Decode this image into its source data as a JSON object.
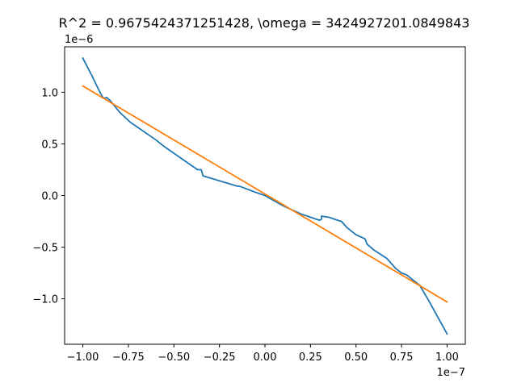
{
  "chart_data": {
    "type": "line",
    "title": "R^2 = 0.9675424371251428, \\omega = 3424927201.0849843",
    "xlabel": "",
    "ylabel": "",
    "x_offset_text": "1e−7",
    "y_offset_text": "1e−6",
    "xlim": [
      -1.1,
      1.1
    ],
    "ylim": [
      -1.44,
      1.44
    ],
    "xticks": [
      {
        "value": -1.0,
        "label": "−1.00"
      },
      {
        "value": -0.75,
        "label": "−0.75"
      },
      {
        "value": -0.5,
        "label": "−0.50"
      },
      {
        "value": -0.25,
        "label": "−0.25"
      },
      {
        "value": 0.0,
        "label": "0.00"
      },
      {
        "value": 0.25,
        "label": "0.25"
      },
      {
        "value": 0.5,
        "label": "0.50"
      },
      {
        "value": 0.75,
        "label": "0.75"
      },
      {
        "value": 1.0,
        "label": "1.00"
      }
    ],
    "yticks": [
      {
        "value": -1.0,
        "label": "−1.0"
      },
      {
        "value": -0.5,
        "label": "−0.5"
      },
      {
        "value": 0.0,
        "label": "0.0"
      },
      {
        "value": 0.5,
        "label": "0.5"
      },
      {
        "value": 1.0,
        "label": "1.0"
      }
    ],
    "grid": false,
    "series": [
      {
        "color": "#1f77b4",
        "x": [
          -1.0,
          -0.95,
          -0.92,
          -0.9,
          -0.89,
          -0.88,
          -0.87,
          -0.85,
          -0.8,
          -0.74,
          -0.6,
          -0.55,
          -0.37,
          -0.35,
          -0.34,
          -0.15,
          -0.14,
          -0.05,
          0.0,
          0.05,
          0.1,
          0.2,
          0.3,
          0.31,
          0.31,
          0.35,
          0.4,
          0.42,
          0.45,
          0.5,
          0.55,
          0.56,
          0.6,
          0.67,
          0.72,
          0.75,
          0.78,
          0.8,
          0.85,
          0.9,
          1.0
        ],
        "y": [
          1.33,
          1.16,
          1.05,
          0.98,
          0.95,
          0.94,
          0.95,
          0.92,
          0.81,
          0.71,
          0.54,
          0.47,
          0.25,
          0.25,
          0.19,
          0.09,
          0.09,
          0.03,
          0.0,
          -0.05,
          -0.1,
          -0.18,
          -0.24,
          -0.23,
          -0.2,
          -0.21,
          -0.24,
          -0.25,
          -0.31,
          -0.38,
          -0.42,
          -0.47,
          -0.53,
          -0.61,
          -0.71,
          -0.75,
          -0.77,
          -0.8,
          -0.87,
          -1.02,
          -1.34
        ]
      },
      {
        "color": "#ff7f0e",
        "x": [
          -1.0,
          1.0
        ],
        "y": [
          1.06,
          -1.03
        ]
      }
    ]
  }
}
